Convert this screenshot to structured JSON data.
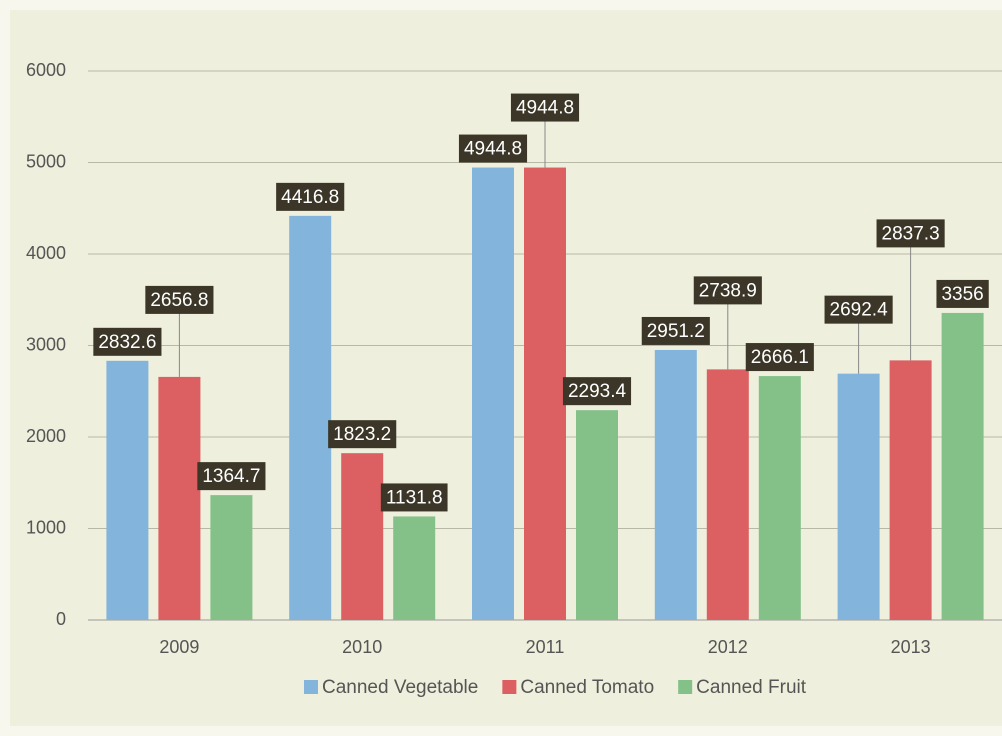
{
  "chart_data": {
    "type": "bar",
    "categories": [
      "2009",
      "2010",
      "2011",
      "2012",
      "2013"
    ],
    "series": [
      {
        "name": "Canned Vegetable",
        "color": "#82b4dc",
        "values": [
          2832.6,
          4416.8,
          4944.8,
          2951.2,
          2692.4
        ]
      },
      {
        "name": "Canned Tomato",
        "color": "#dc5f62",
        "values": [
          2656.8,
          1823.2,
          4944.8,
          2738.9,
          2837.3
        ]
      },
      {
        "name": "Canned Fruit",
        "color": "#84c189",
        "values": [
          1364.7,
          1131.8,
          2293.4,
          2666.1,
          3356
        ]
      }
    ],
    "ylim": [
      0,
      6000
    ],
    "yticks": [
      0,
      1000,
      2000,
      3000,
      4000,
      5000,
      6000
    ],
    "grid": true,
    "legend": "bottom"
  }
}
